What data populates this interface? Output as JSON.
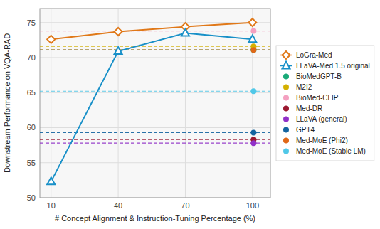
{
  "chart_data": {
    "type": "line",
    "x": [
      10,
      40,
      70,
      100
    ],
    "series": [
      {
        "name": "LoGra-Med",
        "color": "#e07818",
        "marker": "diamond",
        "line_style": "solid",
        "values": [
          72.6,
          73.7,
          74.4,
          75.0
        ]
      },
      {
        "name": "LLaVA-Med 1.5 original",
        "color": "#1890c8",
        "marker": "triangle",
        "line_style": "solid",
        "values": [
          52.3,
          70.9,
          73.5,
          72.6
        ]
      },
      {
        "name": "BioMedGPT-B",
        "type": "hline",
        "color": "#1aaa78",
        "marker": "circle",
        "line_style": "dashed",
        "x": [
          100.5
        ],
        "values": [
          71.1
        ]
      },
      {
        "name": "M2I2",
        "type": "hline",
        "color": "#d4b000",
        "marker": "circle",
        "line_style": "dashed",
        "x": [
          100.5
        ],
        "values": [
          71.6
        ]
      },
      {
        "name": "BioMed-CLIP",
        "type": "hline",
        "color": "#f4a0c0",
        "marker": "circle",
        "line_style": "dashed",
        "x": [
          100.5
        ],
        "values": [
          73.8
        ]
      },
      {
        "name": "Med-DR",
        "type": "hline",
        "color": "#9b1830",
        "marker": "circle",
        "line_style": "dashed",
        "x": [
          100.5
        ],
        "values": [
          58.3
        ]
      },
      {
        "name": "LLaVA (general)",
        "type": "hline",
        "color": "#9030c8",
        "marker": "circle",
        "line_style": "dashed",
        "x": [
          100.5
        ],
        "values": [
          57.8
        ]
      },
      {
        "name": "GPT4",
        "type": "hline",
        "color": "#1464a0",
        "marker": "circle",
        "line_style": "dashed",
        "x": [
          100.5
        ],
        "values": [
          59.3
        ]
      },
      {
        "name": "Med-MoE (Phi2)",
        "type": "hline",
        "color": "#e06818",
        "marker": "circle",
        "line_style": "dashed",
        "x": [
          100.5
        ],
        "values": [
          71.1
        ]
      },
      {
        "name": "Med-MoE (Stable LM)",
        "type": "hline",
        "color": "#50c8e8",
        "marker": "circle",
        "line_style": "dashed",
        "x": [
          100.5
        ],
        "values": [
          65.2
        ]
      }
    ],
    "xlabel": "# Concept Alignment & Instruction-Tuning Percentage (%)",
    "ylabel": "Downstream Performance on VQA-RAD",
    "xlim": [
      5,
      108
    ],
    "ylim": [
      50,
      77
    ],
    "xticks": [
      10,
      40,
      70,
      100
    ],
    "yticks": [
      50,
      55,
      60,
      65,
      70,
      75
    ],
    "grid": true,
    "legend": "right"
  }
}
